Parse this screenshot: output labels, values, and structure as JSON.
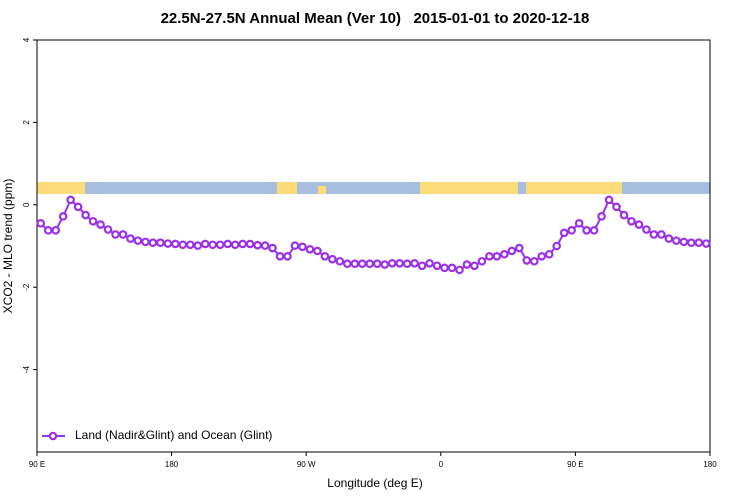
{
  "chart_data": {
    "type": "line",
    "title": "22.5N-27.5N Annual Mean (Ver 10)   2015-01-01 to 2020-12-18",
    "x_label": "Longitude (deg E)",
    "y_label": "XCO2 - MLO trend (ppm)",
    "xlim": [
      90,
      540
    ],
    "xticks": [
      {
        "value": 90,
        "label": "90 E"
      },
      180,
      {
        "value": 270,
        "label": "90 W"
      },
      {
        "value": 360,
        "label": "0"
      },
      {
        "value": 450,
        "label": "90 E"
      },
      {
        "value": 540,
        "label": "180"
      }
    ],
    "ylim": [
      -6,
      4
    ],
    "yticks": [
      -4,
      -2,
      0,
      2,
      4
    ],
    "legend": "bottom-left",
    "x": [
      92.5,
      97.5,
      102.5,
      107.5,
      112.5,
      117.5,
      122.5,
      127.5,
      132.5,
      137.5,
      142.5,
      147.5,
      152.5,
      157.5,
      162.5,
      167.5,
      172.5,
      177.5,
      182.5,
      187.5,
      192.5,
      197.5,
      202.5,
      207.5,
      212.5,
      217.5,
      222.5,
      227.5,
      232.5,
      237.5,
      242.5,
      247.5,
      252.5,
      257.5,
      262.5,
      267.5,
      272.5,
      277.5,
      282.5,
      287.5,
      292.5,
      297.5,
      302.5,
      307.5,
      312.5,
      317.5,
      322.5,
      327.5,
      332.5,
      337.5,
      342.5,
      347.5,
      352.5,
      357.5,
      362.5,
      367.5,
      372.5,
      377.5,
      382.5,
      387.5,
      392.5,
      397.5,
      402.5,
      407.5,
      412.5,
      417.5,
      422.5,
      427.5,
      432.5,
      437.5,
      442.5,
      447.5,
      452.5,
      457.5,
      462.5,
      467.5,
      472.5,
      477.5,
      482.5,
      487.5,
      492.5,
      497.5,
      502.5,
      507.5,
      512.5,
      517.5,
      522.5,
      527.5,
      532.5,
      537.5
    ],
    "series": [
      {
        "name": "Land (Nadir&Glint) and Ocean (Glint)",
        "color": "#9b30e8",
        "values": [
          -0.45,
          -0.62,
          -0.62,
          -0.28,
          0.12,
          -0.05,
          -0.25,
          -0.4,
          -0.48,
          -0.6,
          -0.72,
          -0.72,
          -0.82,
          -0.87,
          -0.9,
          -0.92,
          -0.92,
          -0.94,
          -0.95,
          -0.97,
          -0.97,
          -0.99,
          -0.95,
          -0.97,
          -0.97,
          -0.95,
          -0.97,
          -0.95,
          -0.95,
          -0.98,
          -0.99,
          -1.05,
          -1.25,
          -1.25,
          -0.99,
          -1.02,
          -1.08,
          -1.12,
          -1.25,
          -1.32,
          -1.37,
          -1.43,
          -1.43,
          -1.43,
          -1.43,
          -1.43,
          -1.45,
          -1.42,
          -1.42,
          -1.43,
          -1.42,
          -1.48,
          -1.42,
          -1.48,
          -1.53,
          -1.53,
          -1.58,
          -1.45,
          -1.48,
          -1.37,
          -1.25,
          -1.25,
          -1.2,
          -1.12,
          -1.05,
          -1.35,
          -1.37,
          -1.25,
          -1.2,
          -1.0,
          -0.68,
          -0.62,
          -0.45,
          -0.62,
          -0.62,
          -0.28,
          0.12,
          -0.05,
          -0.25,
          -0.4,
          -0.48,
          -0.6,
          -0.72,
          -0.72,
          -0.82,
          -0.87,
          -0.9,
          -0.92,
          -0.92,
          -0.94
        ]
      }
    ]
  }
}
